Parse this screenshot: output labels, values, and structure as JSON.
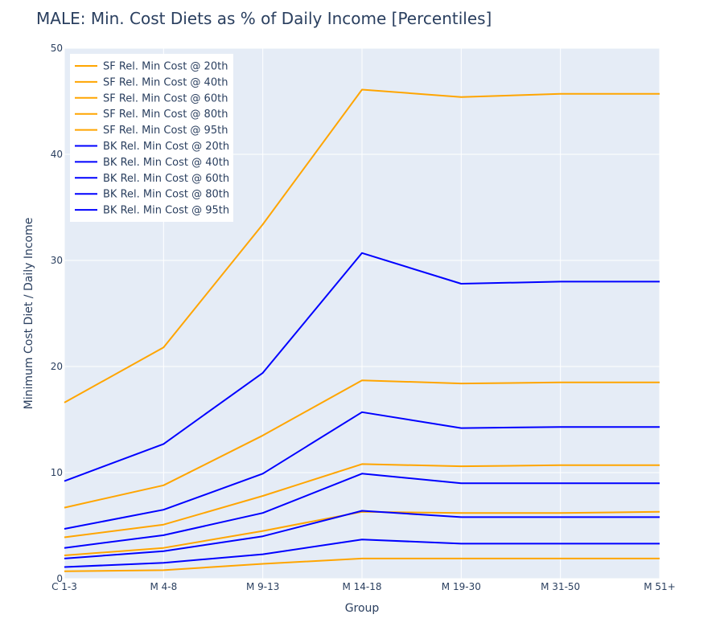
{
  "chart_data": {
    "type": "line",
    "title": "MALE: Min. Cost Diets as % of Daily Income [Percentiles]",
    "xlabel": "Group",
    "ylabel": "Minimum Cost Diet / Daily Income",
    "categories": [
      "C 1-3",
      "M 4-8",
      "M 9-13",
      "M 14-18",
      "M 19-30",
      "M 31-50",
      "M 51+"
    ],
    "ylim": [
      0,
      50
    ],
    "yticks": [
      0,
      10,
      20,
      30,
      40,
      50
    ],
    "grid": true,
    "plot_background": "#e5ecf6",
    "legend_position": "top-left",
    "series": [
      {
        "name": "SF Rel. Min Cost @ 20th",
        "color": "#ffa500",
        "values": [
          16.6,
          21.8,
          33.4,
          46.1,
          45.4,
          45.7,
          45.7
        ]
      },
      {
        "name": "SF Rel. Min Cost @ 40th",
        "color": "#ffa500",
        "values": [
          6.7,
          8.8,
          13.5,
          18.7,
          18.4,
          18.5,
          18.5
        ]
      },
      {
        "name": "SF Rel. Min Cost @ 60th",
        "color": "#ffa500",
        "values": [
          3.9,
          5.1,
          7.8,
          10.8,
          10.6,
          10.7,
          10.7
        ]
      },
      {
        "name": "SF Rel. Min Cost @ 80th",
        "color": "#ffa500",
        "values": [
          2.2,
          2.9,
          4.5,
          6.3,
          6.2,
          6.2,
          6.3
        ]
      },
      {
        "name": "SF Rel. Min Cost @ 95th",
        "color": "#ffa500",
        "values": [
          0.7,
          0.8,
          1.4,
          1.9,
          1.9,
          1.9,
          1.9
        ]
      },
      {
        "name": "BK Rel. Min Cost @ 20th",
        "color": "#0000ff",
        "values": [
          9.2,
          12.7,
          19.4,
          30.7,
          27.8,
          28.0,
          28.0
        ]
      },
      {
        "name": "BK Rel. Min Cost @ 40th",
        "color": "#0000ff",
        "values": [
          4.7,
          6.5,
          9.9,
          15.7,
          14.2,
          14.3,
          14.3
        ]
      },
      {
        "name": "BK Rel. Min Cost @ 60th",
        "color": "#0000ff",
        "values": [
          2.9,
          4.1,
          6.2,
          9.9,
          9.0,
          9.0,
          9.0
        ]
      },
      {
        "name": "BK Rel. Min Cost @ 80th",
        "color": "#0000ff",
        "values": [
          1.9,
          2.6,
          4.0,
          6.4,
          5.8,
          5.8,
          5.8
        ]
      },
      {
        "name": "BK Rel. Min Cost @ 95th",
        "color": "#0000ff",
        "values": [
          1.1,
          1.5,
          2.3,
          3.7,
          3.3,
          3.3,
          3.3
        ]
      }
    ]
  }
}
